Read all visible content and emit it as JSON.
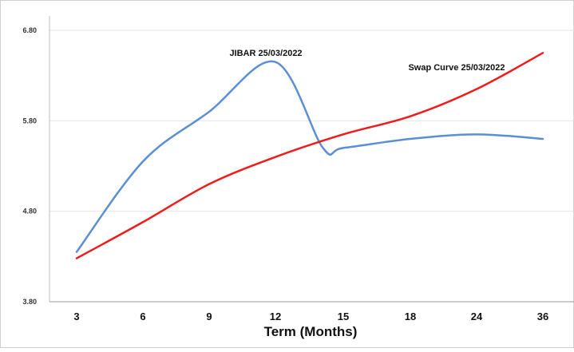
{
  "chart_data": {
    "type": "line",
    "xlabel": "Term (Months)",
    "ylabel": "",
    "categories": [
      "3",
      "6",
      "9",
      "12",
      "15",
      "18",
      "24",
      "36"
    ],
    "ylim": [
      3.8,
      6.8
    ],
    "yticks": [
      "3.80",
      "4.80",
      "5.80",
      "6.80"
    ],
    "grid": true,
    "legend": "none",
    "series": [
      {
        "name": "JIBAR 25/03/2022",
        "color": "#5b8fd4",
        "points": [
          [
            1,
            4.35
          ],
          [
            2,
            5.35
          ],
          [
            3,
            5.9
          ],
          [
            4,
            6.45
          ],
          [
            4.7,
            5.5
          ],
          [
            5,
            5.5
          ],
          [
            6,
            5.6
          ],
          [
            7,
            5.65
          ],
          [
            8,
            5.6
          ]
        ]
      },
      {
        "name": "Swap Curve 25/03/2022",
        "color": "#ee1c1c",
        "points": [
          [
            1,
            4.28
          ],
          [
            2,
            4.68
          ],
          [
            3,
            5.1
          ],
          [
            4,
            5.4
          ],
          [
            5,
            5.65
          ],
          [
            6,
            5.85
          ],
          [
            7,
            6.15
          ],
          [
            8,
            6.55
          ]
        ]
      }
    ]
  }
}
